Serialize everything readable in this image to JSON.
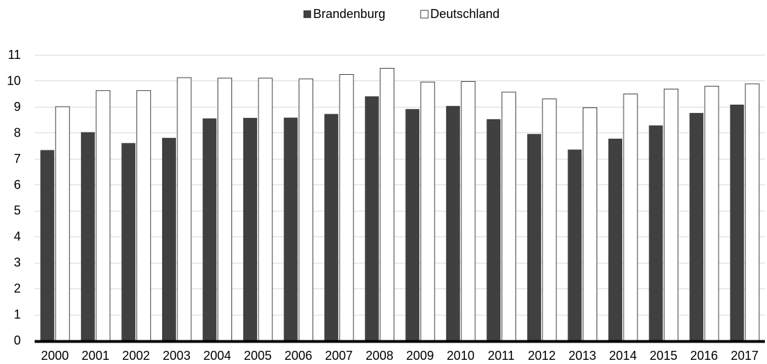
{
  "chart_data": {
    "type": "bar",
    "categories": [
      "2000",
      "2001",
      "2002",
      "2003",
      "2004",
      "2005",
      "2006",
      "2007",
      "2008",
      "2009",
      "2010",
      "2011",
      "2012",
      "2013",
      "2014",
      "2015",
      "2016",
      "2017"
    ],
    "series": [
      {
        "name": "Brandenburg",
        "color": "#404040",
        "values": [
          7.33,
          8.02,
          7.6,
          7.8,
          8.55,
          8.57,
          8.58,
          8.72,
          9.4,
          8.91,
          9.03,
          8.52,
          7.95,
          7.35,
          7.77,
          8.28,
          8.76,
          9.08
        ]
      },
      {
        "name": "Deutschland",
        "color": "#ffffff",
        "values": [
          9.0,
          9.62,
          9.62,
          10.12,
          10.1,
          10.1,
          10.07,
          10.24,
          10.48,
          9.95,
          9.97,
          9.56,
          9.3,
          8.96,
          9.49,
          9.68,
          9.79,
          9.88
        ]
      }
    ],
    "ylim": [
      0,
      11
    ],
    "yticks": [
      "0",
      "1",
      "2",
      "3",
      "4",
      "5",
      "6",
      "7",
      "8",
      "9",
      "10",
      "11"
    ],
    "grid": true,
    "legend_position": "top-center"
  }
}
